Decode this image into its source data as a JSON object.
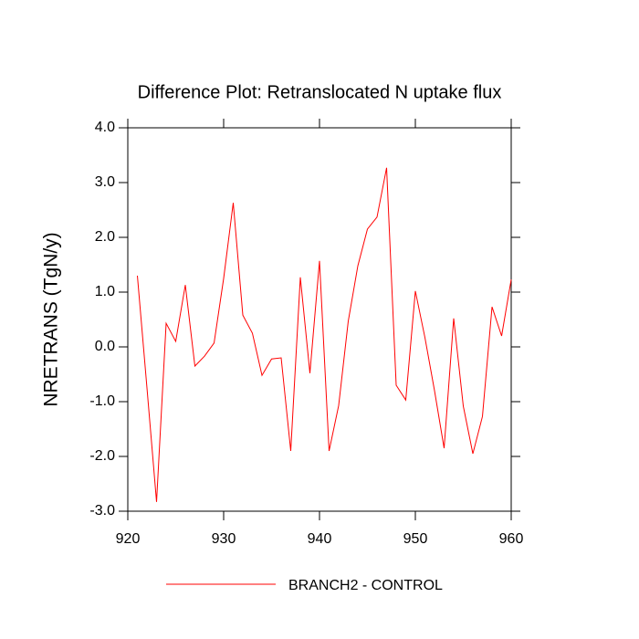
{
  "chart_data": {
    "type": "line",
    "title": "Difference Plot: Retranslocated N uptake flux",
    "y_label": "NRETRANS  (TgN/y)",
    "x": [
      921,
      922,
      923,
      924,
      925,
      926,
      927,
      928,
      929,
      930,
      931,
      932,
      933,
      934,
      935,
      936,
      937,
      938,
      939,
      940,
      941,
      942,
      943,
      944,
      945,
      946,
      947,
      948,
      949,
      950,
      951,
      952,
      953,
      954,
      955,
      956,
      957,
      958,
      959,
      960
    ],
    "series": [
      {
        "name": "BRANCH2 - CONTROL",
        "color": "#ff0000",
        "values": [
          1.3,
          -0.75,
          -2.83,
          0.43,
          0.1,
          1.13,
          -0.35,
          -0.17,
          0.07,
          1.25,
          2.63,
          0.58,
          0.25,
          -0.52,
          -0.22,
          -0.2,
          -1.9,
          1.27,
          -0.48,
          1.57,
          -1.9,
          -1.07,
          0.47,
          1.48,
          2.15,
          2.37,
          3.27,
          -0.7,
          -0.97,
          1.02,
          0.17,
          -0.8,
          -1.85,
          0.52,
          -1.08,
          -1.95,
          -1.27,
          0.73,
          0.2,
          1.23
        ]
      }
    ],
    "xlim": [
      920,
      960
    ],
    "xticks": [
      920,
      930,
      940,
      950,
      960
    ],
    "ylim": [
      -3,
      4
    ],
    "yticks": [
      {
        "value": -3,
        "label": "-3.0"
      },
      {
        "value": -2,
        "label": "-2.0"
      },
      {
        "value": -1,
        "label": "-1.0"
      },
      {
        "value": 0,
        "label": "0.0"
      },
      {
        "value": 1,
        "label": "1.0"
      },
      {
        "value": 2,
        "label": "2.0"
      },
      {
        "value": 3,
        "label": "3.0"
      },
      {
        "value": 4,
        "label": "4.0"
      }
    ],
    "grid": false
  }
}
